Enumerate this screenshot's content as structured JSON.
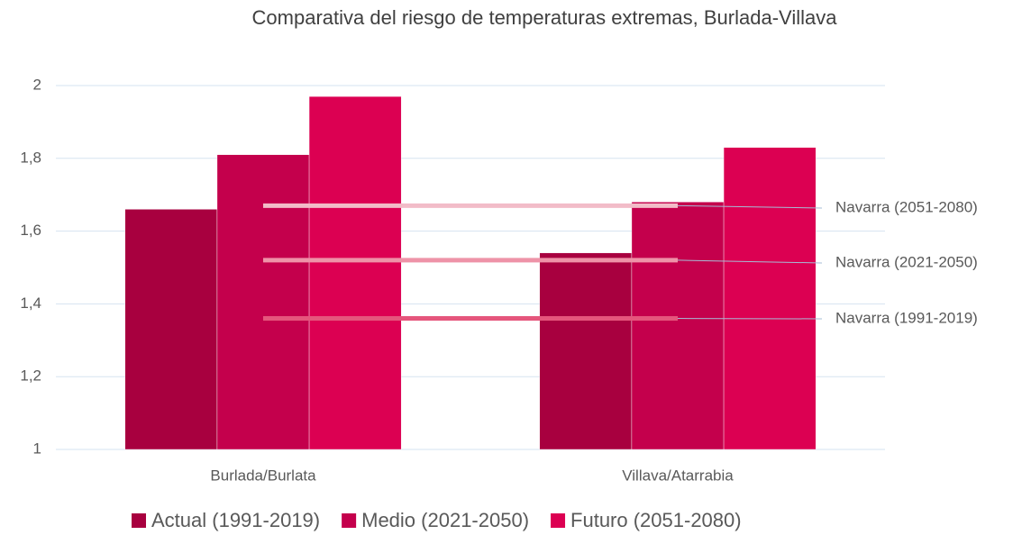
{
  "chart_data": {
    "type": "bar",
    "title": "Comparativa del riesgo de temperaturas extremas, Burlada-Villava",
    "categories": [
      "Burlada/Burlata",
      "Villava/Atarrabia"
    ],
    "series": [
      {
        "name": "Actual (1991-2019)",
        "color": "#a8003f",
        "values": [
          1.66,
          1.54
        ]
      },
      {
        "name": "Medio (2021-2050)",
        "color": "#c4004c",
        "values": [
          1.81,
          1.68
        ]
      },
      {
        "name": "Futuro (2051-2080)",
        "color": "#dc0052",
        "values": [
          1.97,
          1.83
        ]
      }
    ],
    "reference_lines": [
      {
        "name": "Navarra (2051-2080)",
        "value": 1.67,
        "color": "#f2bcc8"
      },
      {
        "name": "Navarra (2021-2050)",
        "value": 1.52,
        "color": "#ee93a8"
      },
      {
        "name": "Navarra (1991-2019)",
        "value": 1.36,
        "color": "#e5567c"
      }
    ],
    "ylim": [
      1,
      2
    ],
    "yticks": [
      1,
      {
        "value": 1.2,
        "label": "1,2"
      },
      {
        "value": 1.4,
        "label": "1,4"
      },
      {
        "value": 1.6,
        "label": "1,6"
      },
      {
        "value": 1.8,
        "label": "1,8"
      },
      2
    ],
    "grid": true,
    "legend": "bottom"
  }
}
